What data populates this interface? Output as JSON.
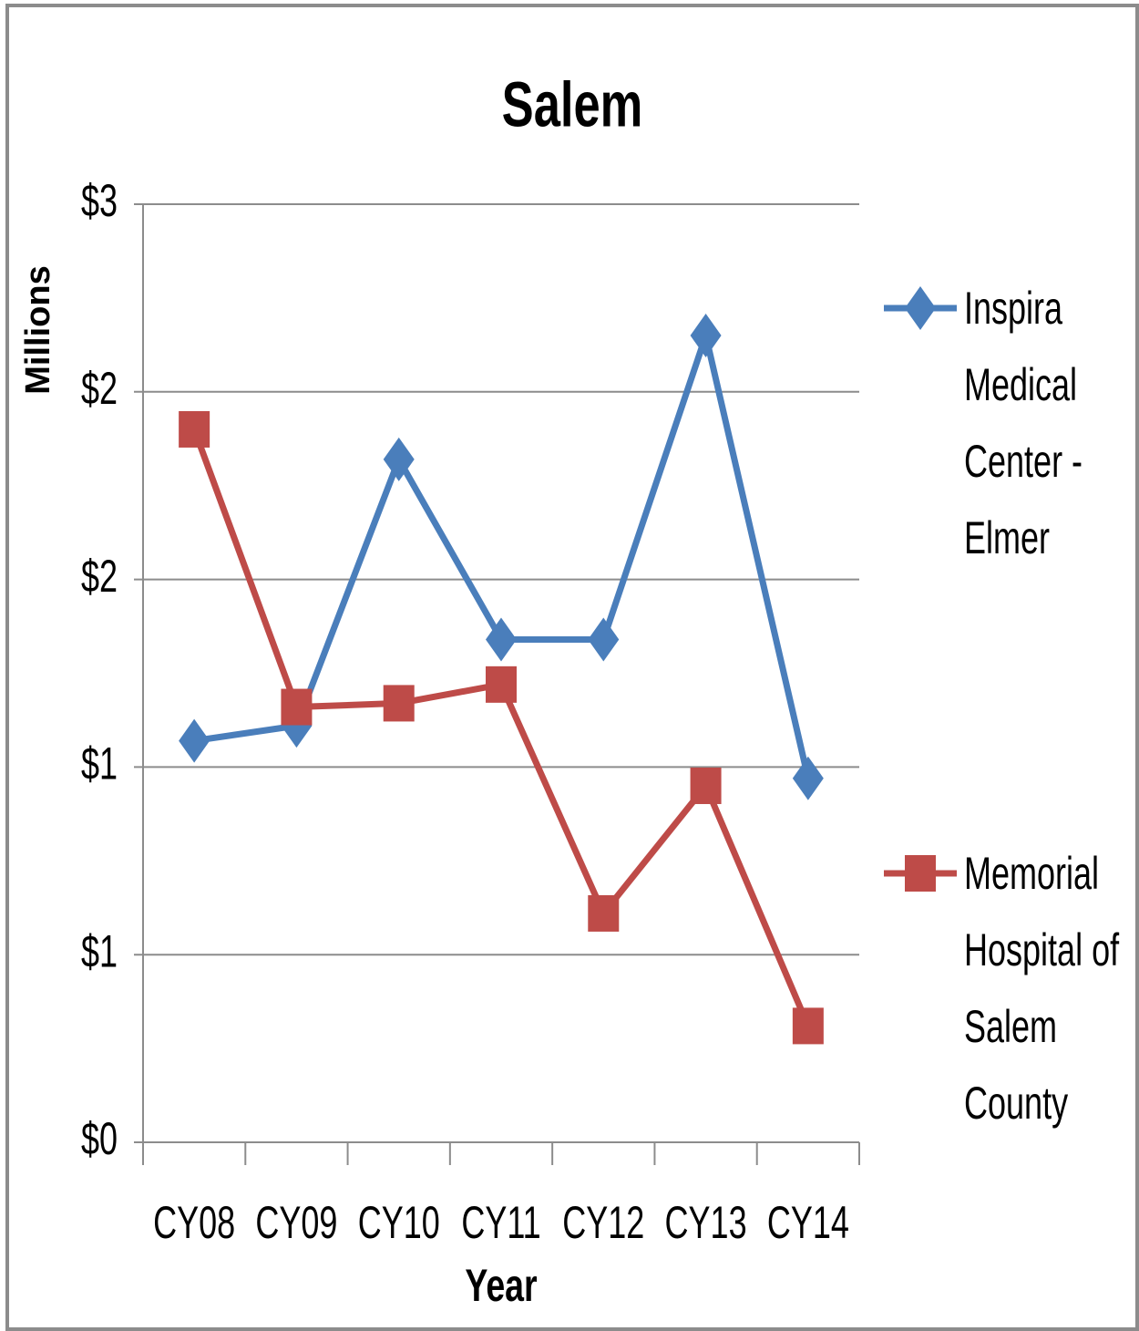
{
  "chart_data": {
    "type": "line",
    "title": "Salem",
    "x_label": "Year",
    "y_label": "Millions",
    "categories": [
      "CY08",
      "CY09",
      "CY10",
      "CY11",
      "CY12",
      "CY13",
      "CY14"
    ],
    "series": [
      {
        "name": "Inspira Medical Center - Elmer",
        "color": "#4a7ebb",
        "marker": "diamond",
        "values": [
          1.07,
          1.11,
          1.82,
          1.34,
          1.34,
          2.15,
          0.97
        ]
      },
      {
        "name": "Memorial Hospital of Salem County",
        "color": "#be4b48",
        "marker": "square",
        "values": [
          1.9,
          1.16,
          1.17,
          1.22,
          0.61,
          0.95,
          0.31
        ]
      }
    ],
    "ylim": [
      0,
      2.5
    ],
    "yticks": [
      {
        "value": 0,
        "label": "$0"
      },
      {
        "value": 0.5,
        "label": "$1"
      },
      {
        "value": 1,
        "label": "$1"
      },
      {
        "value": 1.5,
        "label": "$2"
      },
      {
        "value": 2,
        "label": "$2"
      },
      {
        "value": 2.5,
        "label": "$3"
      }
    ],
    "grid": true,
    "legend": "right"
  }
}
